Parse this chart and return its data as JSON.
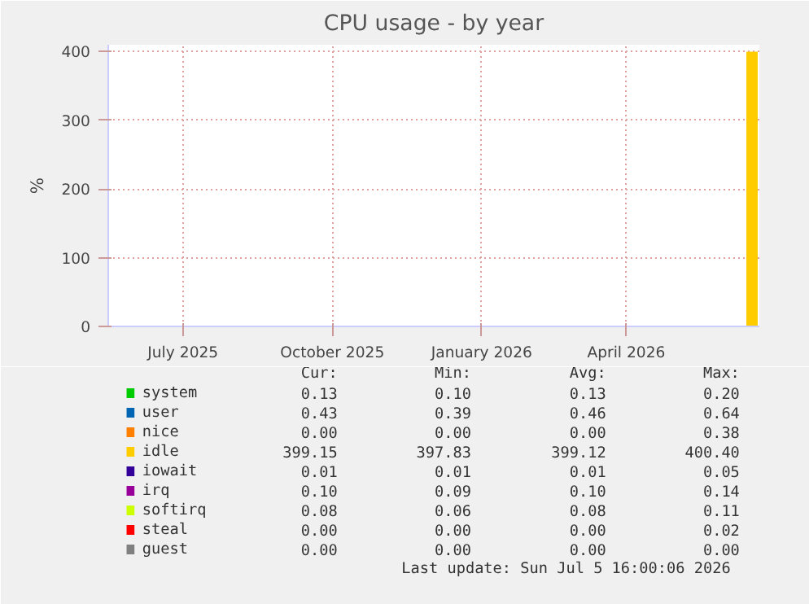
{
  "chart_data": {
    "type": "area",
    "title": "CPU usage - by year",
    "ylabel": "%",
    "legend": "bottom",
    "grid": true,
    "xlim": [
      "2025-05-31",
      "2026-07-06"
    ],
    "ylim": [
      0,
      410
    ],
    "yticks": [
      0,
      100,
      200,
      300,
      400
    ],
    "xticks": [
      {
        "value": "2025-07-16",
        "label": "July 2025"
      },
      {
        "value": "2025-10-16",
        "label": "October 2025"
      },
      {
        "value": "2026-01-16",
        "label": "January 2026"
      },
      {
        "value": "2026-04-15",
        "label": "April 2026"
      }
    ],
    "x": [
      "2026-06-28",
      "2026-07-05"
    ],
    "series": [
      {
        "name": "system",
        "color": "#00cc00",
        "values": [
          null,
          null
        ]
      },
      {
        "name": "user",
        "color": "#0066b3",
        "values": [
          null,
          null
        ]
      },
      {
        "name": "nice",
        "color": "#ff8000",
        "values": [
          null,
          null
        ]
      },
      {
        "name": "idle",
        "color": "#ffcc00",
        "values": [
          400,
          400
        ]
      },
      {
        "name": "iowait",
        "color": "#330099",
        "values": [
          null,
          null
        ]
      },
      {
        "name": "irq",
        "color": "#990099",
        "values": [
          null,
          null
        ]
      },
      {
        "name": "softirq",
        "color": "#ccff00",
        "values": [
          null,
          null
        ]
      },
      {
        "name": "steal",
        "color": "#ff0000",
        "values": [
          null,
          null
        ]
      },
      {
        "name": "guest",
        "color": "#808080",
        "values": [
          null,
          null
        ]
      }
    ],
    "annotations": [
      "Cur:",
      "Min:",
      "Avg:",
      "Max:",
      "0.13",
      "0.10",
      "0.13",
      "0.20",
      "0.43",
      "0.39",
      "0.46",
      "0.64",
      "0.00",
      "0.00",
      "0.00",
      "0.38",
      "399.15",
      "397.83",
      "399.12",
      "400.40",
      "0.01",
      "0.01",
      "0.01",
      "0.05",
      "0.10",
      "0.09",
      "0.10",
      "0.14",
      "0.08",
      "0.06",
      "0.08",
      "0.11",
      "0.00",
      "0.00",
      "0.00",
      "0.02",
      "0.00",
      "0.00",
      "0.00",
      "0.00",
      "Last update: Sun Jul  5 16:00:06 2026"
    ]
  }
}
